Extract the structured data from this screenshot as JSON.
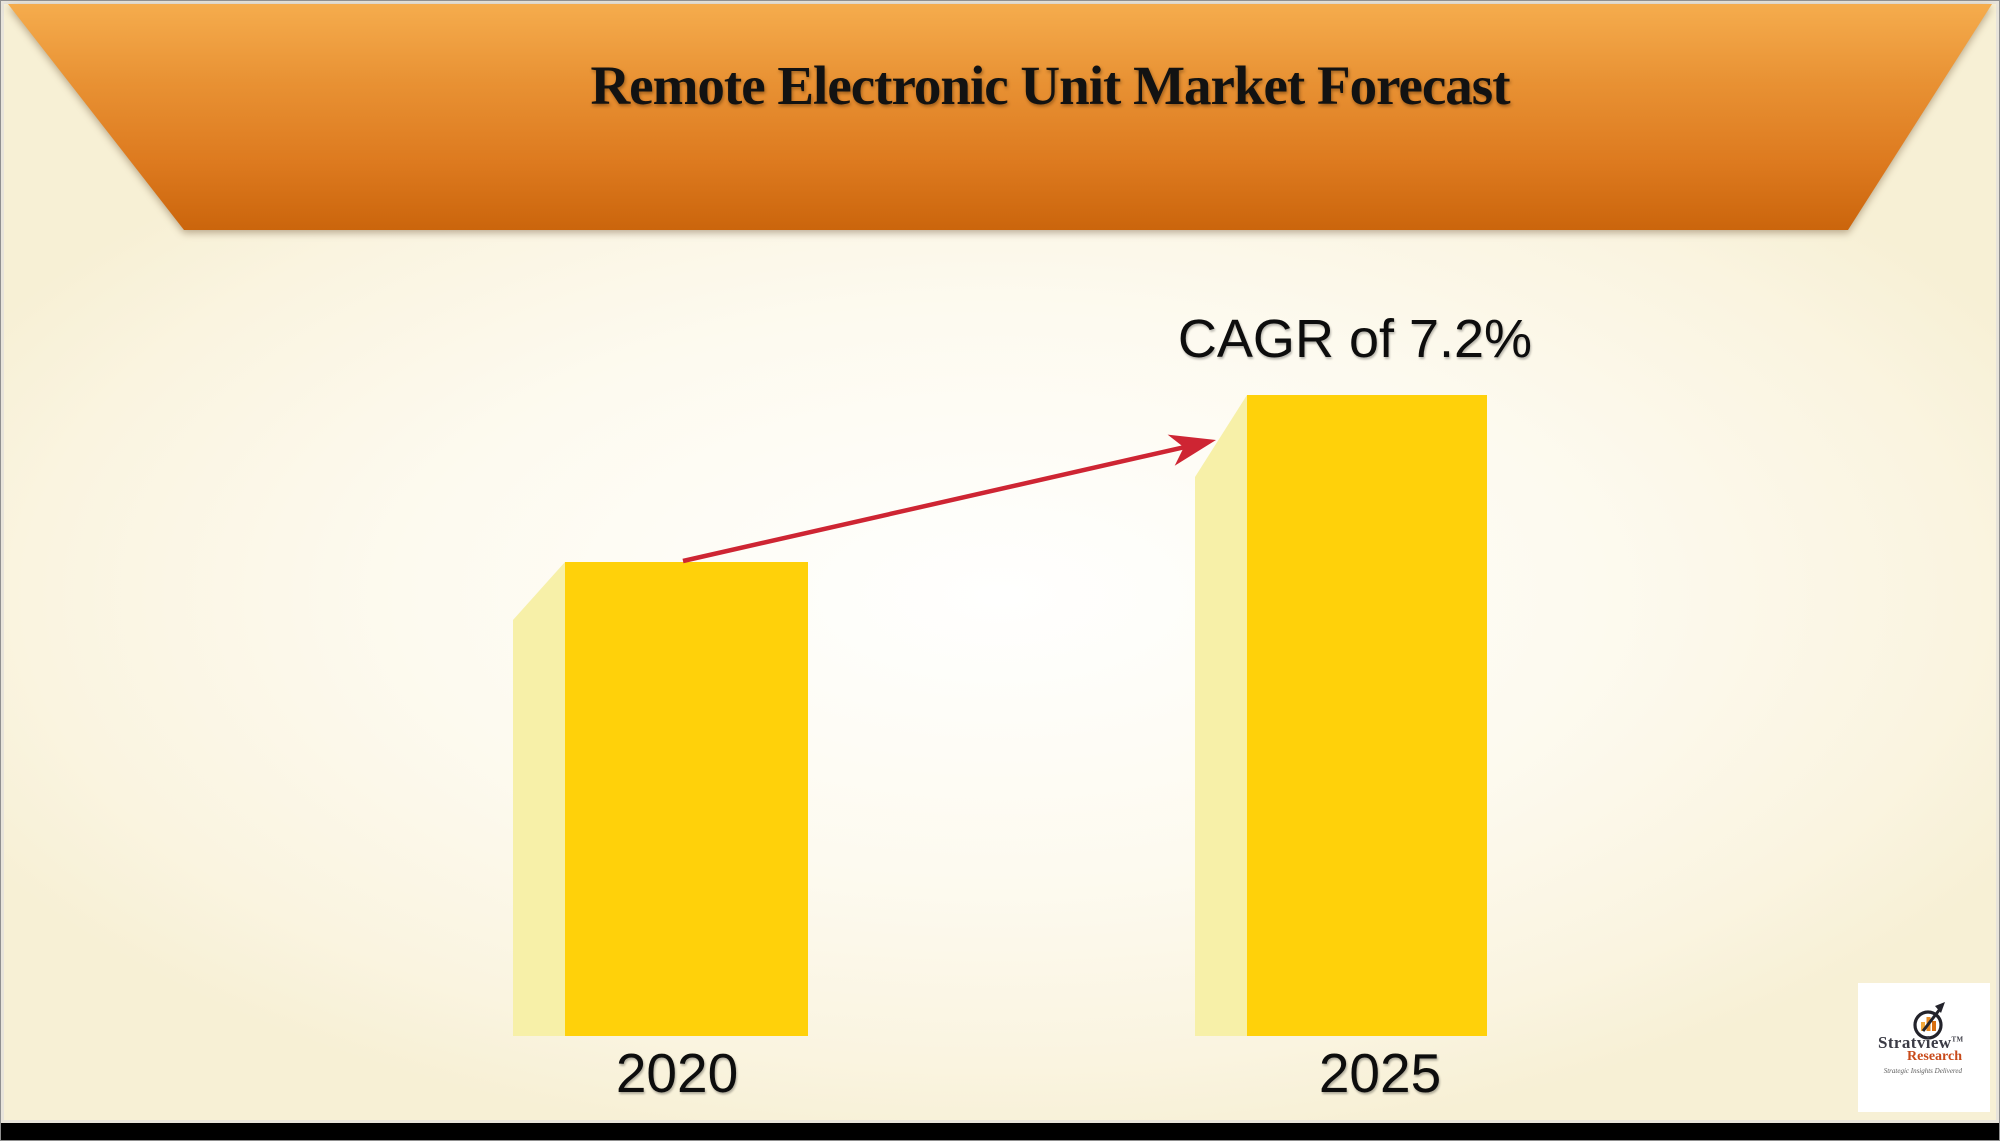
{
  "title": "Remote Electronic Unit Market Forecast",
  "annotation": {
    "text": "CAGR of 7.2%"
  },
  "chart_data": {
    "type": "bar",
    "title": "Remote Electronic Unit Market Forecast",
    "categories": [
      "2020",
      "2025"
    ],
    "values": [
      474,
      641
    ],
    "values_unit": "relative bar heights (no numeric axis shown in image)",
    "growth_annotation": "CAGR of 7.2%",
    "xlabel": "",
    "ylabel": "",
    "legend": "none",
    "grid": false,
    "style": "pseudo-3D bars with pale left side face, red growth arrow from 2020 bar top to 2025 bar top"
  },
  "colors": {
    "bar_face": "#FFD10A",
    "bar_side": "#F7F0A8",
    "arrow": "#CE2533",
    "banner_gradient_top": "#F5AC4D",
    "banner_gradient_mid": "#DD7A1F",
    "banner_gradient_bottom": "#CB650C",
    "background_cream": "#FAF4E0",
    "bottom_bar": "#000000"
  },
  "logo": {
    "wordmark": "Stratview",
    "tm": "TM",
    "wordmark2": "Research",
    "tagline": "Strategic Insights Delivered"
  }
}
